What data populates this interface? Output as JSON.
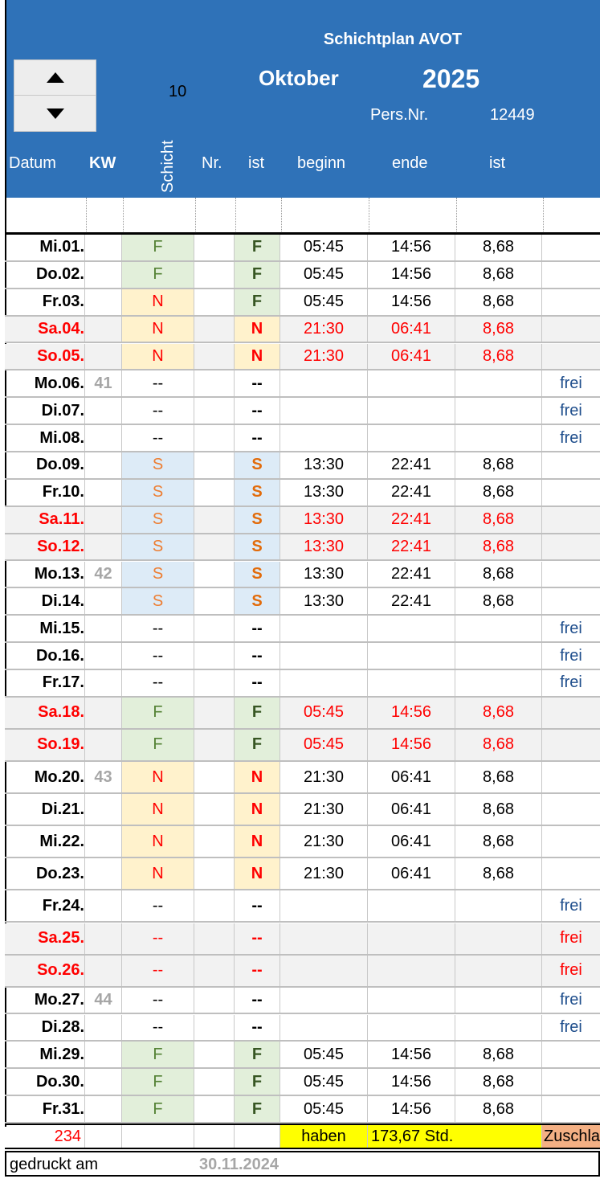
{
  "header": {
    "title": "Schichtplan AVOT",
    "month": "Oktober",
    "year": "2025",
    "month_number": "10",
    "persnr_label": "Pers.Nr.",
    "persnr_value": "12449"
  },
  "spinner": {
    "up_icon": "arrow-up-icon",
    "down_icon": "arrow-down-icon"
  },
  "columns": {
    "datum": "Datum",
    "kw": "KW",
    "schicht": "Schicht",
    "nr": "Nr.",
    "ist": "ist",
    "beginn": "beginn",
    "ende": "ende",
    "ist_hours": "ist"
  },
  "colors": {
    "header_bg": "#2f72b8",
    "weekend_text": "#ff0000",
    "frei_text": "#1f4e8c",
    "shift_F_bg": "#e2efda",
    "shift_N_bg": "#fff2cc",
    "shift_S_bg": "#ddebf7",
    "haben_bg": "#ffff00",
    "zuschlag_bg": "#f4b084"
  },
  "rows": [
    {
      "date": "Mi.01.",
      "kw": "",
      "shift": "F",
      "ist": "F",
      "begin": "05:45",
      "end": "14:56",
      "hours": "8,68",
      "frei": "",
      "weekend": false
    },
    {
      "date": "Do.02.",
      "kw": "",
      "shift": "F",
      "ist": "F",
      "begin": "05:45",
      "end": "14:56",
      "hours": "8,68",
      "frei": "",
      "weekend": false
    },
    {
      "date": "Fr.03.",
      "kw": "",
      "shift": "N",
      "ist": "F",
      "begin": "05:45",
      "end": "14:56",
      "hours": "8,68",
      "frei": "",
      "weekend": false
    },
    {
      "date": "Sa.04.",
      "kw": "",
      "shift": "N",
      "ist": "N",
      "begin": "21:30",
      "end": "06:41",
      "hours": "8,68",
      "frei": "",
      "weekend": true
    },
    {
      "date": "So.05.",
      "kw": "",
      "shift": "N",
      "ist": "N",
      "begin": "21:30",
      "end": "06:41",
      "hours": "8,68",
      "frei": "",
      "weekend": true
    },
    {
      "date": "Mo.06.",
      "kw": "41",
      "shift": "--",
      "ist": "--",
      "begin": "",
      "end": "",
      "hours": "",
      "frei": "frei",
      "weekend": false
    },
    {
      "date": "Di.07.",
      "kw": "",
      "shift": "--",
      "ist": "--",
      "begin": "",
      "end": "",
      "hours": "",
      "frei": "frei",
      "weekend": false
    },
    {
      "date": "Mi.08.",
      "kw": "",
      "shift": "--",
      "ist": "--",
      "begin": "",
      "end": "",
      "hours": "",
      "frei": "frei",
      "weekend": false
    },
    {
      "date": "Do.09.",
      "kw": "",
      "shift": "S",
      "ist": "S",
      "begin": "13:30",
      "end": "22:41",
      "hours": "8,68",
      "frei": "",
      "weekend": false
    },
    {
      "date": "Fr.10.",
      "kw": "",
      "shift": "S",
      "ist": "S",
      "begin": "13:30",
      "end": "22:41",
      "hours": "8,68",
      "frei": "",
      "weekend": false
    },
    {
      "date": "Sa.11.",
      "kw": "",
      "shift": "S",
      "ist": "S",
      "begin": "13:30",
      "end": "22:41",
      "hours": "8,68",
      "frei": "",
      "weekend": true
    },
    {
      "date": "So.12.",
      "kw": "",
      "shift": "S",
      "ist": "S",
      "begin": "13:30",
      "end": "22:41",
      "hours": "8,68",
      "frei": "",
      "weekend": true
    },
    {
      "date": "Mo.13.",
      "kw": "42",
      "shift": "S",
      "ist": "S",
      "begin": "13:30",
      "end": "22:41",
      "hours": "8,68",
      "frei": "",
      "weekend": false
    },
    {
      "date": "Di.14.",
      "kw": "",
      "shift": "S",
      "ist": "S",
      "begin": "13:30",
      "end": "22:41",
      "hours": "8,68",
      "frei": "",
      "weekend": false
    },
    {
      "date": "Mi.15.",
      "kw": "",
      "shift": "--",
      "ist": "--",
      "begin": "",
      "end": "",
      "hours": "",
      "frei": "frei",
      "weekend": false
    },
    {
      "date": "Do.16.",
      "kw": "",
      "shift": "--",
      "ist": "--",
      "begin": "",
      "end": "",
      "hours": "",
      "frei": "frei",
      "weekend": false
    },
    {
      "date": "Fr.17.",
      "kw": "",
      "shift": "--",
      "ist": "--",
      "begin": "",
      "end": "",
      "hours": "",
      "frei": "frei",
      "weekend": false
    },
    {
      "date": "Sa.18.",
      "kw": "",
      "shift": "F",
      "ist": "F",
      "begin": "05:45",
      "end": "14:56",
      "hours": "8,68",
      "frei": "",
      "weekend": true
    },
    {
      "date": "So.19.",
      "kw": "",
      "shift": "F",
      "ist": "F",
      "begin": "05:45",
      "end": "14:56",
      "hours": "8,68",
      "frei": "",
      "weekend": true
    },
    {
      "date": "Mo.20.",
      "kw": "43",
      "shift": "N",
      "ist": "N",
      "begin": "21:30",
      "end": "06:41",
      "hours": "8,68",
      "frei": "",
      "weekend": false
    },
    {
      "date": "Di.21.",
      "kw": "",
      "shift": "N",
      "ist": "N",
      "begin": "21:30",
      "end": "06:41",
      "hours": "8,68",
      "frei": "",
      "weekend": false
    },
    {
      "date": "Mi.22.",
      "kw": "",
      "shift": "N",
      "ist": "N",
      "begin": "21:30",
      "end": "06:41",
      "hours": "8,68",
      "frei": "",
      "weekend": false
    },
    {
      "date": "Do.23.",
      "kw": "",
      "shift": "N",
      "ist": "N",
      "begin": "21:30",
      "end": "06:41",
      "hours": "8,68",
      "frei": "",
      "weekend": false
    },
    {
      "date": "Fr.24.",
      "kw": "",
      "shift": "--",
      "ist": "--",
      "begin": "",
      "end": "",
      "hours": "",
      "frei": "frei",
      "weekend": false
    },
    {
      "date": "Sa.25.",
      "kw": "",
      "shift": "--",
      "ist": "--",
      "begin": "",
      "end": "",
      "hours": "",
      "frei": "frei",
      "weekend": true
    },
    {
      "date": "So.26.",
      "kw": "",
      "shift": "--",
      "ist": "--",
      "begin": "",
      "end": "",
      "hours": "",
      "frei": "frei",
      "weekend": true
    },
    {
      "date": "Mo.27.",
      "kw": "44",
      "shift": "--",
      "ist": "--",
      "begin": "",
      "end": "",
      "hours": "",
      "frei": "frei",
      "weekend": false
    },
    {
      "date": "Di.28.",
      "kw": "",
      "shift": "--",
      "ist": "--",
      "begin": "",
      "end": "",
      "hours": "",
      "frei": "frei",
      "weekend": false
    },
    {
      "date": "Mi.29.",
      "kw": "",
      "shift": "F",
      "ist": "F",
      "begin": "05:45",
      "end": "14:56",
      "hours": "8,68",
      "frei": "",
      "weekend": false
    },
    {
      "date": "Do.30.",
      "kw": "",
      "shift": "F",
      "ist": "F",
      "begin": "05:45",
      "end": "14:56",
      "hours": "8,68",
      "frei": "",
      "weekend": false
    },
    {
      "date": "Fr.31.",
      "kw": "",
      "shift": "F",
      "ist": "F",
      "begin": "05:45",
      "end": "14:56",
      "hours": "8,68",
      "frei": "",
      "weekend": false
    }
  ],
  "summary": {
    "count": "234",
    "haben_label": "haben",
    "total": "173,67 Std.",
    "zuschlag": "Zuschla"
  },
  "footer": {
    "printed_label": "gedruckt am",
    "printed_date": "30.11.2024"
  }
}
